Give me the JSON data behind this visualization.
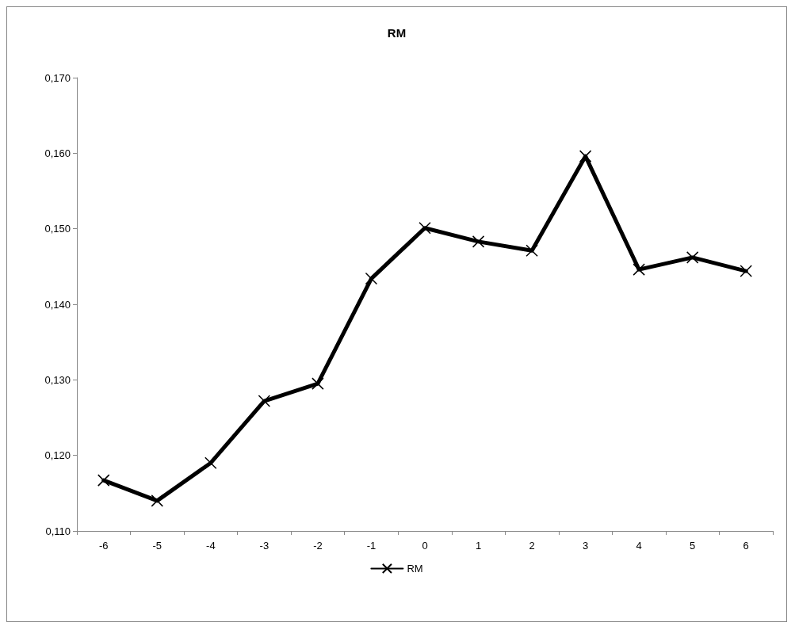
{
  "chart_data": {
    "type": "line",
    "title": "RM",
    "categories": [
      "-6",
      "-5",
      "-4",
      "-3",
      "-2",
      "-1",
      "0",
      "1",
      "2",
      "3",
      "4",
      "5",
      "6"
    ],
    "series": [
      {
        "name": "RM",
        "color": "#000000",
        "values": [
          0.1167,
          0.114,
          0.119,
          0.1272,
          0.1295,
          0.1434,
          0.1501,
          0.1483,
          0.1471,
          0.1596,
          0.1446,
          0.1462,
          0.1444
        ]
      }
    ],
    "ylim": [
      0.11,
      0.17
    ],
    "yticks": [
      {
        "value": 0.11,
        "label": "0,110"
      },
      {
        "value": 0.12,
        "label": "0,120"
      },
      {
        "value": 0.13,
        "label": "0,130"
      },
      {
        "value": 0.14,
        "label": "0,140"
      },
      {
        "value": 0.15,
        "label": "0,150"
      },
      {
        "value": 0.16,
        "label": "0,160"
      },
      {
        "value": 0.17,
        "label": "0,170"
      }
    ],
    "grid": false,
    "legend": "bottom",
    "marker": "cross",
    "line_style": "solid"
  }
}
